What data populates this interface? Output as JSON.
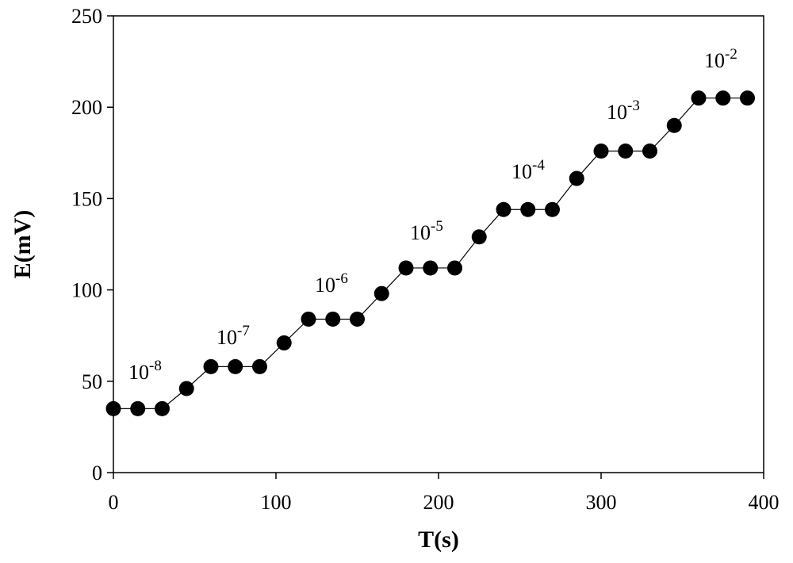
{
  "chart_data": {
    "type": "line",
    "x_label": "T(s)",
    "y_label": "E(mV)",
    "x": [
      0,
      15,
      30,
      45,
      60,
      75,
      90,
      105,
      120,
      135,
      150,
      165,
      180,
      195,
      210,
      225,
      240,
      255,
      270,
      285,
      300,
      315,
      330,
      345,
      360,
      375,
      390
    ],
    "series": [
      {
        "color": "#000000",
        "values": [
          35,
          35,
          35,
          46,
          58,
          58,
          58,
          71,
          84,
          84,
          84,
          98,
          112,
          112,
          112,
          129,
          144,
          144,
          144,
          161,
          176,
          176,
          176,
          190,
          205,
          205,
          205
        ]
      }
    ],
    "xlim": [
      0,
      400
    ],
    "xticks": [
      0,
      100,
      200,
      300,
      400
    ],
    "ylim": [
      0,
      250
    ],
    "yticks": [
      0,
      50,
      100,
      150,
      200,
      250
    ],
    "annotations": [
      {
        "base": "10",
        "exponent": "-8"
      },
      {
        "base": "10",
        "exponent": "-7"
      },
      {
        "base": "10",
        "exponent": "-6"
      },
      {
        "base": "10",
        "exponent": "-5"
      },
      {
        "base": "10",
        "exponent": "-4"
      },
      {
        "base": "10",
        "exponent": "-3"
      },
      {
        "base": "10",
        "exponent": "-2"
      }
    ]
  }
}
